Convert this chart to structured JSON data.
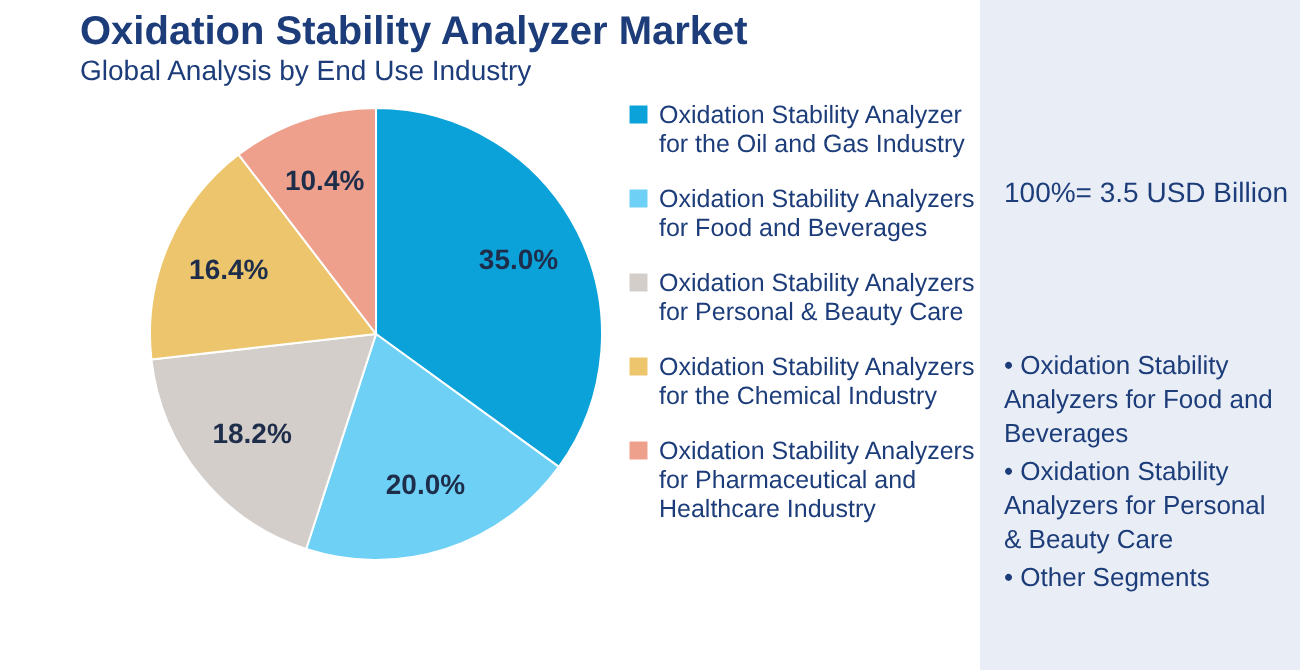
{
  "chart_data": {
    "type": "pie",
    "title": "Oxidation Stability Analyzer Market",
    "subtitle": "Global Analysis by End Use Industry",
    "categories": [
      "Oxidation Stability Analyzer for the Oil and Gas Industry",
      "Oxidation Stability Analyzers for Food and Beverages",
      "Oxidation Stability Analyzers for Personal & Beauty Care",
      "Oxidation Stability Analyzers for the Chemical Industry",
      "Oxidation Stability Analyzers for Pharmaceutical and Healthcare Industry"
    ],
    "values": [
      35.0,
      20.0,
      18.2,
      16.4,
      10.4
    ],
    "value_labels": [
      "35.0%",
      "20.0%",
      "18.2%",
      "16.4%",
      "10.4%"
    ],
    "colors": [
      "#0ba1d9",
      "#6fd0f5",
      "#d4cecb",
      "#edc56c",
      "#eea08c"
    ],
    "legend": "right",
    "annotations": [
      "100%= 3.5 USD Billion",
      "• Oxidation Stability Analyzers for Food and Beverages",
      "• Oxidation Stability Analyzers for Personal & Beauty Care",
      "• Other Segments"
    ]
  }
}
